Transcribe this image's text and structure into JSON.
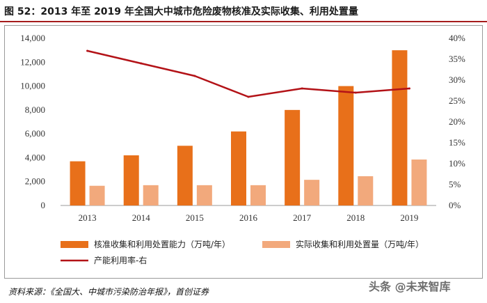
{
  "title": "图 52：2013 年至 2019 年全国大中城市危险废物核准及实际收集、利用处置量",
  "source": "资料来源：《全国大、中城市污染防治年报》，首创证券",
  "watermark": "头条 @未来智库",
  "colors": {
    "bar_capacity": "#e8701a",
    "bar_actual": "#f2a97c",
    "line": "#b31217",
    "title_rule": "#a61c1c"
  },
  "chart_data": {
    "type": "bar",
    "categories": [
      "2013",
      "2014",
      "2015",
      "2016",
      "2017",
      "2018",
      "2019"
    ],
    "series": [
      {
        "name": "核准收集和利用处置能力（万吨/年）",
        "type": "bar",
        "axis": "left",
        "values": [
          3700,
          4200,
          5000,
          6200,
          8000,
          10000,
          13000
        ]
      },
      {
        "name": "实际收集和利用处置量（万吨/年）",
        "type": "bar",
        "axis": "left",
        "values": [
          1650,
          1700,
          1700,
          1700,
          2150,
          2450,
          3850
        ]
      },
      {
        "name": "产能利用率-右",
        "type": "line",
        "axis": "right",
        "values": [
          37,
          34,
          31,
          26,
          28,
          27,
          28
        ]
      }
    ],
    "y_left": {
      "min": 0,
      "max": 14000,
      "ticks": [
        "0",
        "2,000",
        "4,000",
        "6,000",
        "8,000",
        "10,000",
        "12,000",
        "14,000"
      ]
    },
    "y_right": {
      "min": 0,
      "max": 40,
      "ticks": [
        "0%",
        "5%",
        "10%",
        "15%",
        "20%",
        "25%",
        "30%",
        "35%",
        "40%"
      ]
    },
    "grid": false,
    "legend_position": "bottom"
  }
}
